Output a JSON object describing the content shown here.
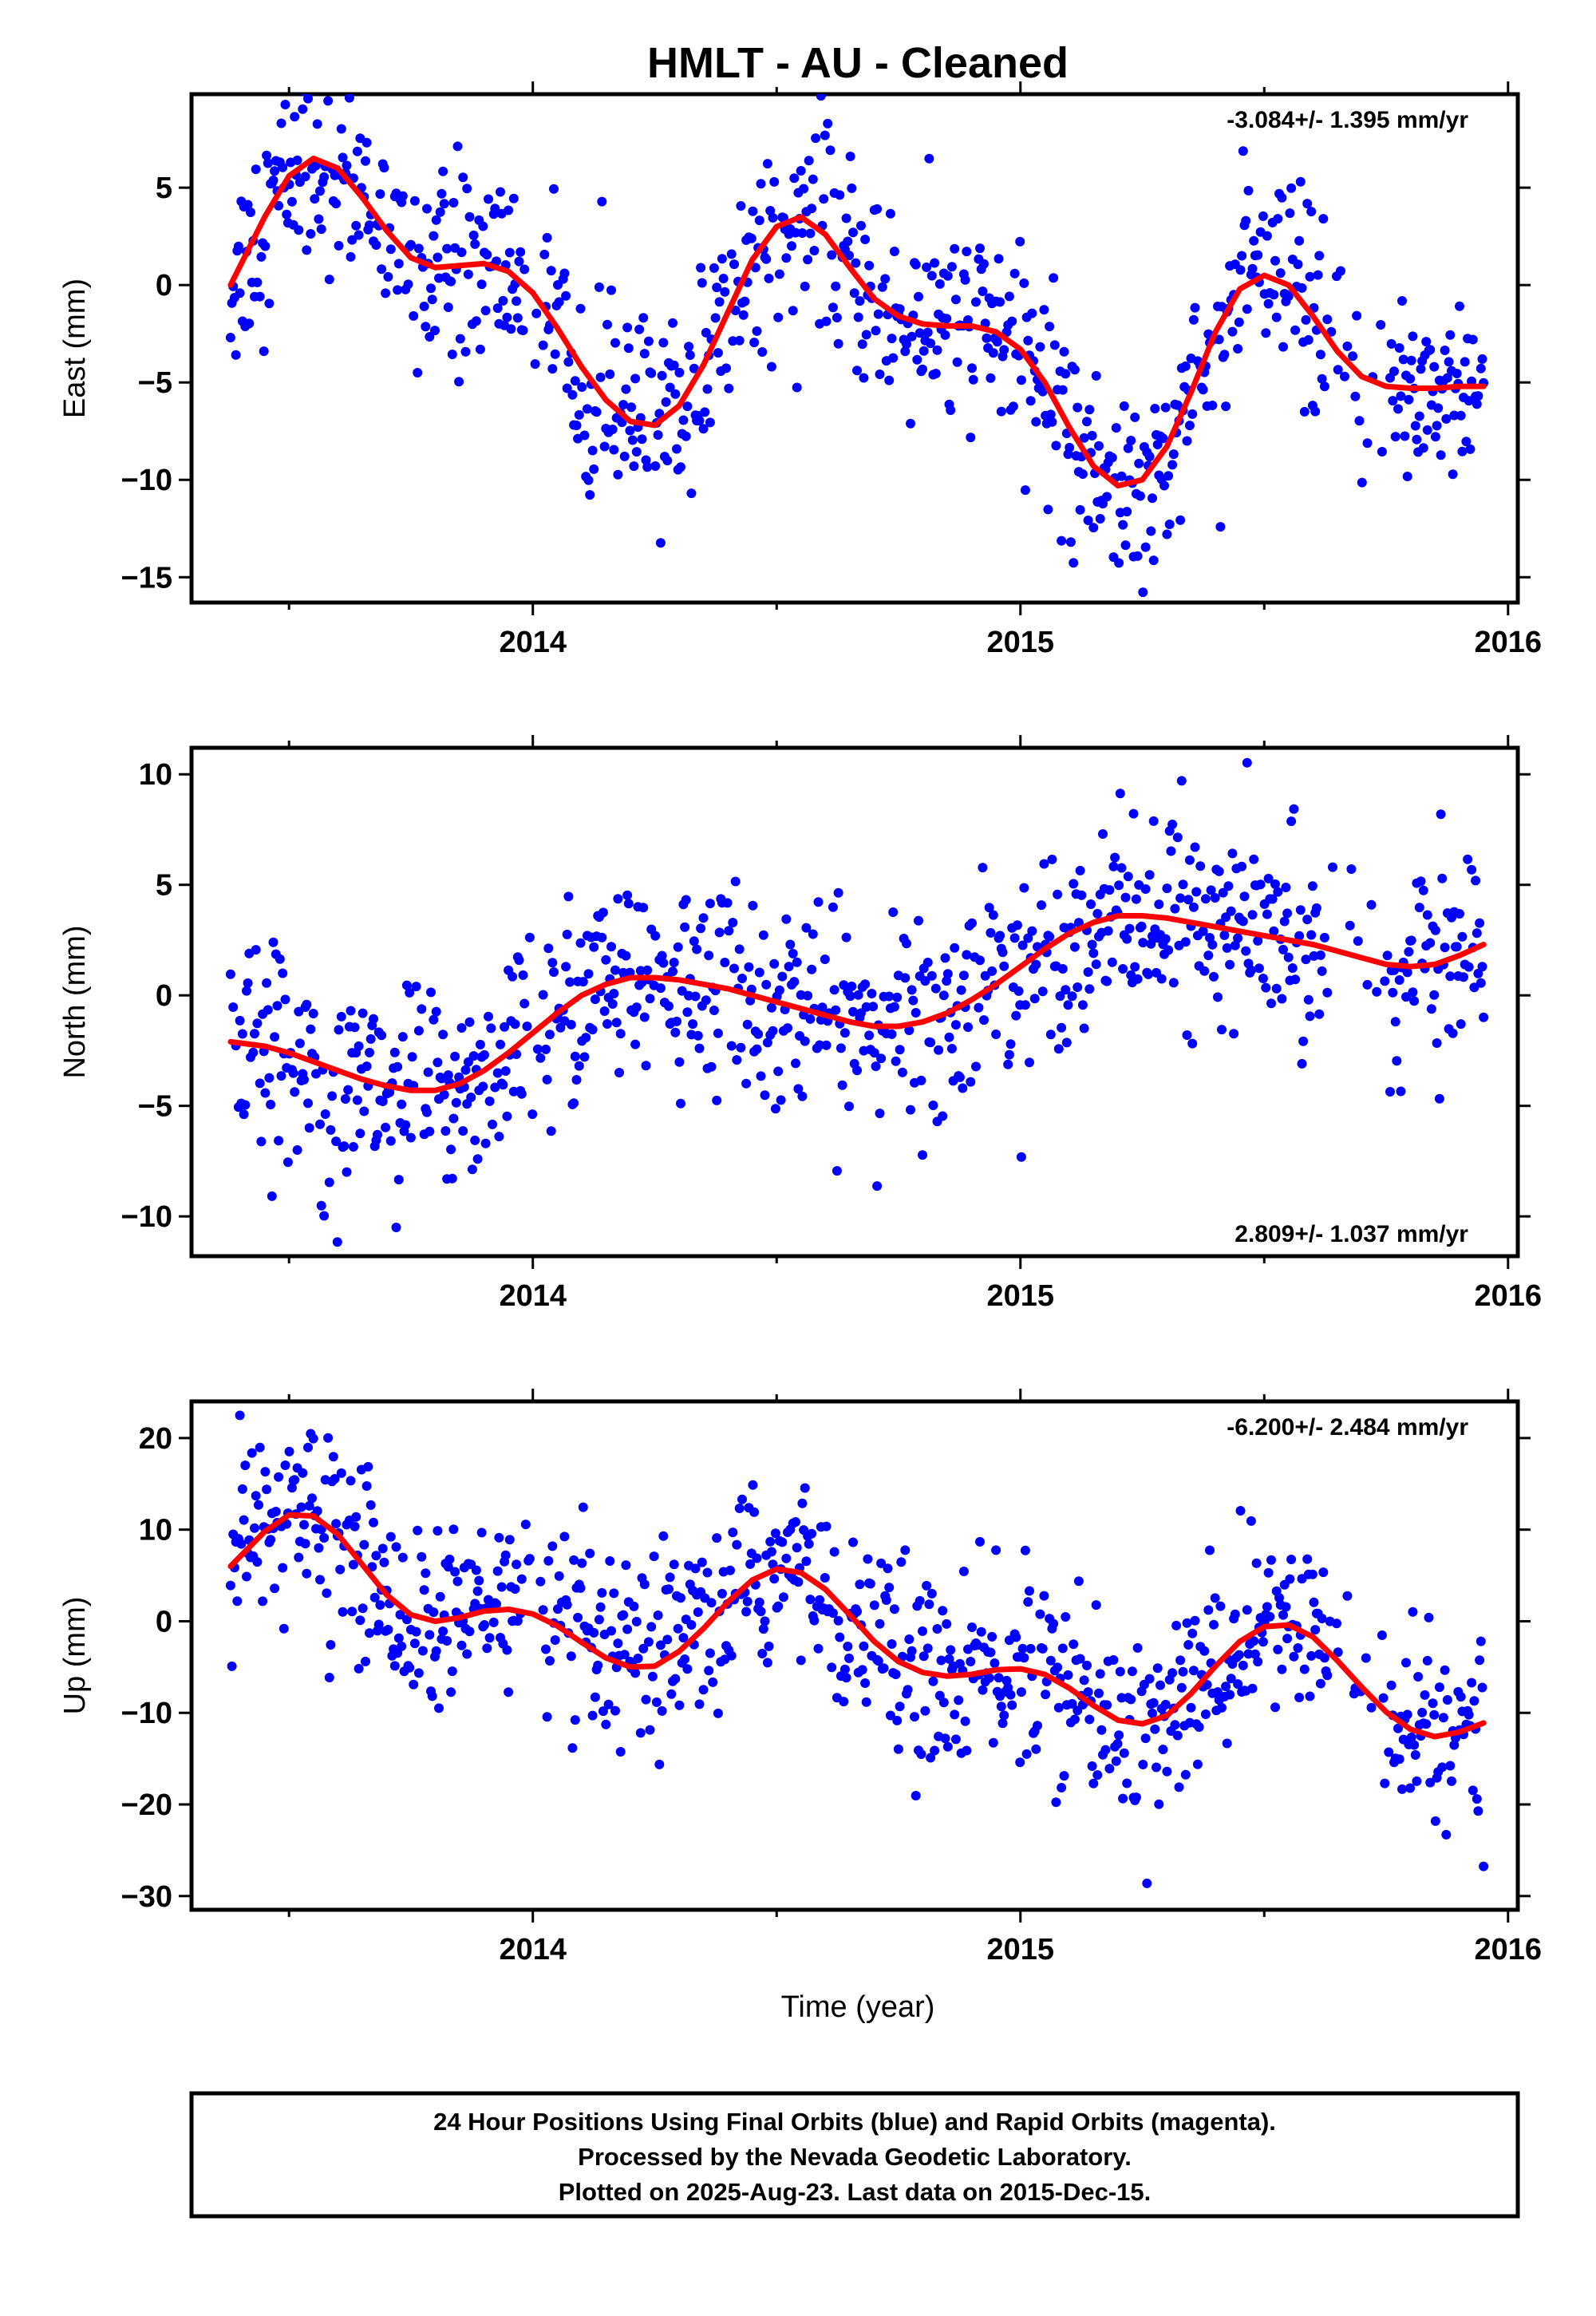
{
  "title": "HMLT  - AU - Cleaned",
  "xlabel": "Time (year)",
  "colors": {
    "points": "#0000ff",
    "fit": "#ff0000",
    "frame": "#000000"
  },
  "footer": {
    "lines": [
      "24 Hour Positions Using Final Orbits (blue) and Rapid Orbits (magenta).",
      "Processed by the Nevada Geodetic Laboratory.",
      "Plotted on 2025-Aug-23. Last data on 2015-Dec-15."
    ]
  },
  "chart_data": [
    {
      "type": "scatter",
      "panel": "east",
      "ylabel": "East (mm)",
      "rate_label": "-3.084+/- 1.395 mm/yr",
      "rate_position": "top-right",
      "xlim": [
        2013.3,
        2016.02
      ],
      "ylim": [
        -16.3,
        9.8
      ],
      "xticks": [
        2014,
        2015,
        2016
      ],
      "xtick_labels": [
        "2014",
        "2015",
        "2016"
      ],
      "yticks": [
        -15,
        -10,
        -5,
        0,
        5
      ],
      "ytick_labels": [
        "−15",
        "−10",
        "−5",
        "0",
        "5"
      ],
      "fit_curve": {
        "name": "model",
        "x": [
          2013.38,
          2013.45,
          2013.5,
          2013.55,
          2013.6,
          2013.65,
          2013.7,
          2013.75,
          2013.8,
          2013.85,
          2013.9,
          2013.95,
          2014.0,
          2014.05,
          2014.1,
          2014.15,
          2014.2,
          2014.25,
          2014.3,
          2014.35,
          2014.4,
          2014.45,
          2014.5,
          2014.55,
          2014.6,
          2014.65,
          2014.7,
          2014.75,
          2014.8,
          2014.85,
          2014.9,
          2014.95,
          2015.0,
          2015.05,
          2015.1,
          2015.15,
          2015.2,
          2015.25,
          2015.3,
          2015.35,
          2015.4,
          2015.45,
          2015.5,
          2015.55,
          2015.6,
          2015.65,
          2015.7,
          2015.75,
          2015.8,
          2015.85,
          2015.9,
          2015.95
        ],
        "y": [
          0.0,
          3.5,
          5.6,
          6.5,
          6.0,
          4.5,
          2.8,
          1.4,
          0.9,
          1.0,
          1.1,
          0.7,
          -0.4,
          -2.2,
          -4.2,
          -5.9,
          -7.0,
          -7.2,
          -6.2,
          -4.1,
          -1.4,
          1.3,
          3.0,
          3.5,
          2.6,
          0.9,
          -0.7,
          -1.6,
          -2.0,
          -2.1,
          -2.1,
          -2.4,
          -3.3,
          -5.0,
          -7.3,
          -9.3,
          -10.3,
          -10.0,
          -8.3,
          -5.5,
          -2.4,
          -0.2,
          0.5,
          0.0,
          -1.6,
          -3.4,
          -4.7,
          -5.2,
          -5.3,
          -5.3,
          -5.2,
          -5.2
        ]
      }
    },
    {
      "type": "scatter",
      "panel": "north",
      "ylabel": "North (mm)",
      "rate_label": "2.809+/- 1.037 mm/yr",
      "rate_position": "bottom-right",
      "xlim": [
        2013.3,
        2016.02
      ],
      "ylim": [
        -11.8,
        11.2
      ],
      "xticks": [
        2014,
        2015,
        2016
      ],
      "xtick_labels": [
        "2014",
        "2015",
        "2016"
      ],
      "yticks": [
        -10,
        -5,
        0,
        5,
        10
      ],
      "ytick_labels": [
        "−10",
        "−5",
        "0",
        "5",
        "10"
      ],
      "fit_curve": {
        "name": "model",
        "x": [
          2013.38,
          2013.45,
          2013.5,
          2013.55,
          2013.6,
          2013.65,
          2013.7,
          2013.75,
          2013.8,
          2013.85,
          2013.9,
          2013.95,
          2014.0,
          2014.05,
          2014.1,
          2014.15,
          2014.2,
          2014.25,
          2014.3,
          2014.35,
          2014.4,
          2014.45,
          2014.5,
          2014.55,
          2014.6,
          2014.65,
          2014.7,
          2014.75,
          2014.8,
          2014.85,
          2014.9,
          2014.95,
          2015.0,
          2015.05,
          2015.1,
          2015.15,
          2015.2,
          2015.25,
          2015.3,
          2015.35,
          2015.4,
          2015.45,
          2015.5,
          2015.55,
          2015.6,
          2015.65,
          2015.7,
          2015.75,
          2015.8,
          2015.85,
          2015.9,
          2015.95
        ],
        "y": [
          -2.1,
          -2.3,
          -2.6,
          -3.0,
          -3.4,
          -3.8,
          -4.1,
          -4.3,
          -4.3,
          -4.0,
          -3.4,
          -2.6,
          -1.7,
          -0.8,
          0.0,
          0.5,
          0.8,
          0.8,
          0.7,
          0.5,
          0.3,
          0.0,
          -0.3,
          -0.6,
          -0.9,
          -1.2,
          -1.4,
          -1.4,
          -1.2,
          -0.8,
          -0.2,
          0.5,
          1.3,
          2.1,
          2.8,
          3.3,
          3.6,
          3.6,
          3.5,
          3.3,
          3.1,
          2.9,
          2.7,
          2.5,
          2.3,
          2.0,
          1.7,
          1.4,
          1.3,
          1.4,
          1.8,
          2.3
        ]
      }
    },
    {
      "type": "scatter",
      "panel": "up",
      "ylabel": "Up (mm)",
      "rate_label": "-6.200+/- 2.484 mm/yr",
      "rate_position": "top-right",
      "xlim": [
        2013.3,
        2016.02
      ],
      "ylim": [
        -31.5,
        24.0
      ],
      "xticks": [
        2014,
        2015,
        2016
      ],
      "xtick_labels": [
        "2014",
        "2015",
        "2016"
      ],
      "yticks": [
        -30,
        -20,
        -10,
        0,
        10,
        20
      ],
      "ytick_labels": [
        "−30",
        "−20",
        "−10",
        "0",
        "10",
        "20"
      ],
      "fit_curve": {
        "name": "model",
        "x": [
          2013.38,
          2013.45,
          2013.5,
          2013.55,
          2013.6,
          2013.65,
          2013.7,
          2013.75,
          2013.8,
          2013.85,
          2013.9,
          2013.95,
          2014.0,
          2014.05,
          2014.1,
          2014.15,
          2014.2,
          2014.25,
          2014.3,
          2014.35,
          2014.4,
          2014.45,
          2014.5,
          2014.55,
          2014.6,
          2014.65,
          2014.7,
          2014.75,
          2014.8,
          2014.85,
          2014.9,
          2014.95,
          2015.0,
          2015.05,
          2015.1,
          2015.15,
          2015.2,
          2015.25,
          2015.3,
          2015.35,
          2015.4,
          2015.45,
          2015.5,
          2015.55,
          2015.6,
          2015.65,
          2015.7,
          2015.75,
          2015.8,
          2015.85,
          2015.9,
          2015.95
        ],
        "y": [
          6.0,
          9.8,
          11.6,
          11.5,
          9.5,
          6.2,
          2.9,
          0.7,
          0.0,
          0.4,
          1.1,
          1.3,
          0.8,
          -0.5,
          -2.3,
          -4.0,
          -5.0,
          -4.9,
          -3.3,
          -0.8,
          2.1,
          4.5,
          5.7,
          5.3,
          3.5,
          0.7,
          -2.2,
          -4.4,
          -5.6,
          -6.0,
          -5.8,
          -5.3,
          -5.2,
          -5.8,
          -7.3,
          -9.2,
          -10.8,
          -11.2,
          -10.3,
          -7.9,
          -4.9,
          -2.2,
          -0.6,
          -0.4,
          -1.7,
          -4.3,
          -7.2,
          -9.9,
          -11.8,
          -12.6,
          -12.1,
          -11.1
        ]
      }
    }
  ]
}
